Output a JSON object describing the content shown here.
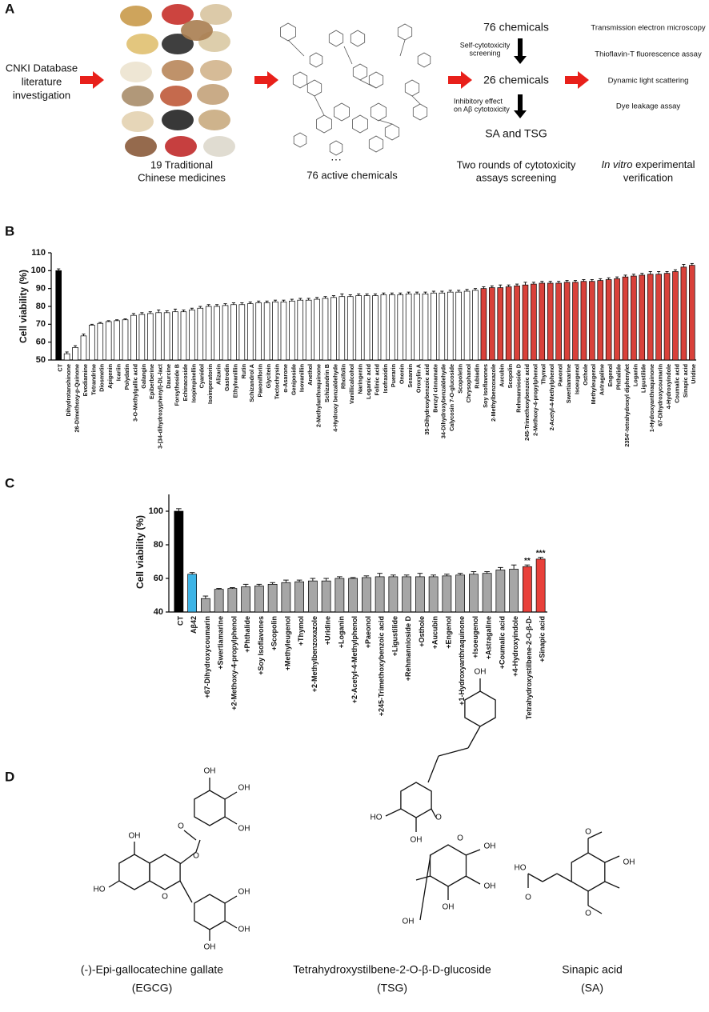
{
  "panel_labels": [
    "A",
    "B",
    "C",
    "D"
  ],
  "panel_a": {
    "source": [
      "CNKI Database",
      "literature",
      "investigation"
    ],
    "herbs_caption": [
      "19 Traditional",
      "Chinese medicines"
    ],
    "ellipsis": "···",
    "chemicals_caption": "76 active chemicals",
    "step_1": "76 chemicals",
    "screen_1": [
      "Self-cytotoxicity",
      "screening"
    ],
    "step_2": "26 chemicals",
    "screen_2": [
      "Inhibitory effect",
      "on Aβ cytotoxicity"
    ],
    "step_3": "SA and TSG",
    "screening_caption": [
      "Two rounds of cytotoxicity",
      "assays screening"
    ],
    "assays": [
      "Transmission electron microscopy",
      "Thioflavin-T fluorescence assay",
      "Dynamic light scattering",
      "Dye leakage assay"
    ],
    "verification_caption": [
      "In vitro",
      " experimental",
      "verification"
    ]
  },
  "chart_data": [
    {
      "type": "bar",
      "ylabel": "Cell viability (%)",
      "categories": [
        "CT",
        "Dihydrotanshinone",
        "26-Dimethoxy-p-Quinone",
        "Evodiamine",
        "Tetrandrine",
        "Diosmetin",
        "Apigenin",
        "Icariin",
        "Polydatin",
        "3-O-Methylgallic acid",
        "Galangin",
        "Epiberberine",
        "3-(34-dihydroxyphenyl)-DL-lact",
        "Daurcine",
        "Forsythoside B",
        "Echinacoside",
        "Isopimpinellin",
        "Cyanidol",
        "Isoimperatorin",
        "Alizarin",
        "Gastrodin",
        "Ethylvanillin",
        "Rutin",
        "Schizandrol A",
        "Paeoniflorin",
        "Glycitein",
        "Tectochrysin",
        "α-Asarone",
        "Geniposide",
        "Isovanillin",
        "Anethol",
        "2-Methylanthraquinone",
        "Schizandrin B",
        "4-Hydroxy benzaldehyde",
        "Rhoifolin",
        "Vanillicalcohol",
        "Naringenin",
        "Loganic acid",
        "Folinic acid",
        "Isofraxidin",
        "Puerarin",
        "Ononin",
        "Sesamin",
        "Oroxylin A",
        "35-Dihydroxybenzoic acid",
        "Benzyl cinnamate",
        "34-Dihydroxybenzaldehyde",
        "Calycosin 7-O-glucoside",
        "Scopoletin",
        "Chrysophanol",
        "Rubiadin",
        "Soy Isoflavones",
        "2-Methylbenzoxazole",
        "Aucubin",
        "Scopolin",
        "Rehmannioside D",
        "245-Trimethoxybenzoic acid",
        "2-Methoxy-4-propylphenol",
        "Thymol",
        "2-Acetyl-4-Methylphenol",
        "Paeonol",
        "Swertiamarine",
        "Isoeugenol",
        "Osthole",
        "Methyleugenol",
        "Astragaline",
        "Engenol",
        "Phthalide",
        "2354'-tetrahydroxyl diphenylet",
        "Loganin",
        "Ligustilide",
        "1-Hydroxyanthraquinone",
        "67-Dihydroxycoumarin",
        "4-Hydroxyindole",
        "Coumalic acid",
        "Sinapic acid",
        "Uridine"
      ],
      "values": [
        100,
        53.5,
        57,
        63.5,
        69.5,
        70.5,
        71.5,
        72,
        72.5,
        75,
        75.5,
        76,
        76.5,
        76.5,
        77,
        77,
        78,
        79,
        80,
        80,
        80.5,
        81,
        81,
        81.5,
        82,
        82,
        82.5,
        82.5,
        83,
        83.5,
        83.5,
        84,
        84.5,
        85,
        85.5,
        85.5,
        86,
        86,
        86,
        86.5,
        86.5,
        86.5,
        87,
        87,
        87,
        87.5,
        87.5,
        88,
        88,
        88.5,
        89,
        90,
        90.5,
        90.5,
        91,
        91.5,
        92,
        92.5,
        93,
        93,
        93,
        93.5,
        93.5,
        94,
        94,
        94.5,
        95,
        95.5,
        96.5,
        97,
        97.5,
        98,
        98,
        98.5,
        99.5,
        102,
        103
      ],
      "errors": [
        1,
        1,
        1,
        1,
        0.5,
        0.5,
        0.5,
        0.5,
        0.5,
        1,
        1,
        1,
        1.5,
        1,
        1.5,
        1,
        1,
        1,
        1,
        1,
        1,
        1,
        1,
        1,
        1,
        1,
        1,
        1,
        1,
        1,
        1,
        1,
        1,
        1,
        1.5,
        1,
        1,
        1,
        1,
        1,
        1,
        1,
        1,
        1,
        1,
        1,
        1,
        1,
        1,
        1,
        1,
        1,
        1,
        1.5,
        1,
        1,
        1.5,
        1,
        1,
        1,
        1,
        1,
        1,
        1,
        1,
        1,
        1,
        1,
        1,
        1,
        1,
        1.5,
        1.5,
        1,
        1,
        1.5,
        1
      ],
      "colors": [
        "#000000",
        "#ffffff",
        "#ffffff",
        "#ffffff",
        "#ffffff",
        "#ffffff",
        "#ffffff",
        "#ffffff",
        "#ffffff",
        "#ffffff",
        "#ffffff",
        "#ffffff",
        "#ffffff",
        "#ffffff",
        "#ffffff",
        "#ffffff",
        "#ffffff",
        "#ffffff",
        "#ffffff",
        "#ffffff",
        "#ffffff",
        "#ffffff",
        "#ffffff",
        "#ffffff",
        "#ffffff",
        "#ffffff",
        "#ffffff",
        "#ffffff",
        "#ffffff",
        "#ffffff",
        "#ffffff",
        "#ffffff",
        "#ffffff",
        "#ffffff",
        "#ffffff",
        "#ffffff",
        "#ffffff",
        "#ffffff",
        "#ffffff",
        "#ffffff",
        "#ffffff",
        "#ffffff",
        "#ffffff",
        "#ffffff",
        "#ffffff",
        "#ffffff",
        "#ffffff",
        "#ffffff",
        "#ffffff",
        "#ffffff",
        "#ffffff",
        "#d9413a",
        "#d9413a",
        "#d9413a",
        "#d9413a",
        "#d9413a",
        "#d9413a",
        "#d9413a",
        "#d9413a",
        "#d9413a",
        "#d9413a",
        "#d9413a",
        "#d9413a",
        "#d9413a",
        "#d9413a",
        "#d9413a",
        "#d9413a",
        "#d9413a",
        "#d9413a",
        "#d9413a",
        "#d9413a",
        "#d9413a",
        "#d9413a",
        "#d9413a",
        "#d9413a",
        "#d9413a",
        "#d9413a"
      ],
      "ylim": [
        50,
        110
      ],
      "yticks": [
        50,
        60,
        70,
        80,
        90,
        100,
        110
      ]
    },
    {
      "type": "bar",
      "ylabel": "Cell viability (%)",
      "categories": [
        "CT",
        "Aβ42",
        "+67-Dihydroxycoumarin",
        "+Swertiamarine",
        "+2-Methoxy-4-propylphenol",
        "+Phthalide",
        "+Soy Isoflavones",
        "+Scopolin",
        "+Methyleugenol",
        "+Thymol",
        "+2-Methylbenzoxazole",
        "+Uridine",
        "+Loganin",
        "+2-Acetyl-4-Methylphenol",
        "+Paeonol",
        "+245-Trimethoxybenzoic acid",
        "+Ligustilide",
        "+Rehmannioside D",
        "+Osthole",
        "+Aucubin",
        "+Engenol",
        "+1-Hydroxyanthraquinone",
        "+Isoeugenol",
        "+Astragaline",
        "+Coumalic acid",
        "+4-Hydroxyindole",
        "Tetrahydroxystilbene-2-O-β-D-",
        "+Sinapic acid"
      ],
      "values": [
        100,
        62.5,
        48,
        53.5,
        54,
        55,
        55.5,
        56.5,
        57.5,
        58,
        58.5,
        58.5,
        60,
        60,
        60.5,
        61,
        61,
        61,
        61,
        61,
        61.5,
        62,
        62.5,
        63,
        65,
        65.5,
        67,
        71.5
      ],
      "errors": [
        1.5,
        1,
        1.5,
        0.5,
        0.5,
        1.5,
        1,
        1,
        1.5,
        1,
        1.5,
        1.5,
        1,
        0.5,
        1,
        2,
        1,
        1,
        2,
        1,
        1,
        1,
        1.5,
        1,
        1.5,
        2.5,
        1,
        1
      ],
      "colors": [
        "#000000",
        "#3db4e6",
        "#a6a6a6",
        "#a6a6a6",
        "#a6a6a6",
        "#a6a6a6",
        "#a6a6a6",
        "#a6a6a6",
        "#a6a6a6",
        "#a6a6a6",
        "#a6a6a6",
        "#a6a6a6",
        "#a6a6a6",
        "#a6a6a6",
        "#a6a6a6",
        "#a6a6a6",
        "#a6a6a6",
        "#a6a6a6",
        "#a6a6a6",
        "#a6a6a6",
        "#a6a6a6",
        "#a6a6a6",
        "#a6a6a6",
        "#a6a6a6",
        "#a6a6a6",
        "#a6a6a6",
        "#e8403a",
        "#e8403a"
      ],
      "significance": [
        null,
        null,
        null,
        null,
        null,
        null,
        null,
        null,
        null,
        null,
        null,
        null,
        null,
        null,
        null,
        null,
        null,
        null,
        null,
        null,
        null,
        null,
        null,
        null,
        null,
        null,
        "**",
        "***"
      ],
      "ylim": [
        40,
        110
      ],
      "yticks": [
        40,
        60,
        80,
        100
      ]
    }
  ],
  "panel_d": {
    "molecules": [
      {
        "atoms": [
          "OH",
          "OH",
          "OH",
          "O",
          "O",
          "OH",
          "HO",
          "O",
          "OH",
          "OH",
          "OH"
        ],
        "name": "(-)-Epi-gallocatechine gallate",
        "abbr": "(EGCG)"
      },
      {
        "atoms": [
          "OH",
          "HO",
          "OH",
          "O",
          "O",
          "OH",
          "OH",
          "OH",
          "OH"
        ],
        "name": "Tetrahydroxystilbene-2-O-β-D-glucoside",
        "abbr": "(TSG)"
      },
      {
        "atoms": [
          "O",
          "OH",
          "O",
          "HO",
          "O"
        ],
        "name": "Sinapic acid",
        "abbr": "(SA)"
      }
    ]
  }
}
